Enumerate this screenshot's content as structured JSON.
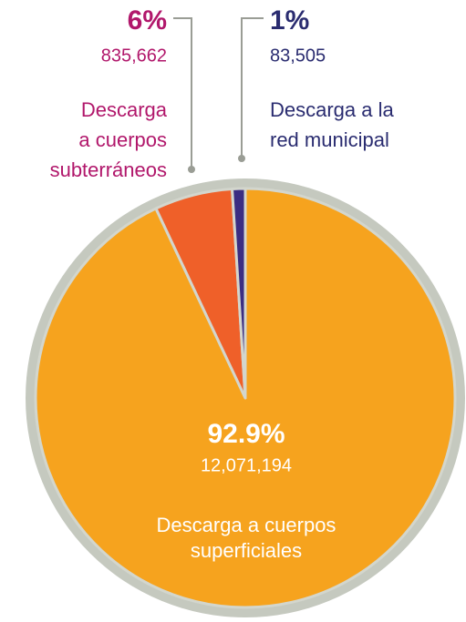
{
  "chart_data": {
    "type": "pie",
    "categories": [
      [
        "Descarga a cuerpos",
        "superficiales"
      ],
      [
        "Descarga",
        "a cuerpos",
        "subterráneos"
      ],
      [
        "Descarga a la",
        "red municipal"
      ]
    ],
    "values": [
      92.9,
      6,
      1
    ],
    "value_labels": [
      "92.9%",
      "6%",
      "1%"
    ],
    "amount_labels": [
      "12,071,194",
      "835,662",
      "83,505"
    ],
    "colors": [
      "#f6a31e",
      "#ef6029",
      "#3b2d82"
    ]
  }
}
